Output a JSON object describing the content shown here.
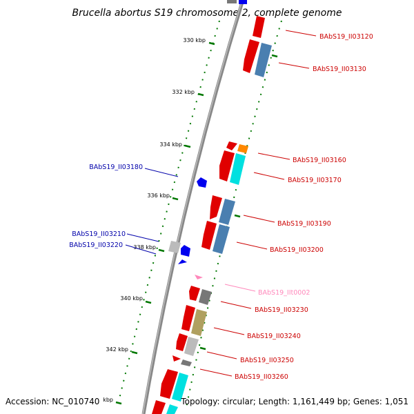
{
  "title": "Brucella abortus S19 chromosome 2, complete genome",
  "accession": "Accession: NC_010740",
  "topology": "Topology: circular; Length: 1,161,449 bp; Genes: 1,051",
  "kbp_unit": "kbp",
  "tick_labels": [
    "330 kbp",
    "332 kbp",
    "334 kbp",
    "336 kbp",
    "338 kbp",
    "340 kbp",
    "342 kbp"
  ],
  "colors": {
    "backbone": "#888888",
    "tick": "#007700",
    "red_gene": "#e00000",
    "blue_gene": "#4a7fb0",
    "cyan_gene": "#00e0e0",
    "orange_gene": "#ff8800",
    "grey_gene": "#777777",
    "lightgrey_gene": "#bbbbbb",
    "olive_gene": "#b0a060",
    "blue_rev_gene": "#0000ee",
    "pink_rna": "#ff88bb",
    "label_red": "#cc0000",
    "label_blue": "#0000aa",
    "label_pink": "#ff88bb"
  },
  "gene_labels": [
    {
      "text": "BAbS19_II03120",
      "color": "label_red"
    },
    {
      "text": "BAbS19_II03130",
      "color": "label_red"
    },
    {
      "text": "BAbS19_II03160",
      "color": "label_red"
    },
    {
      "text": "BAbS19_II03170",
      "color": "label_red"
    },
    {
      "text": "BAbS19_II03190",
      "color": "label_red"
    },
    {
      "text": "BAbS19_II03200",
      "color": "label_red"
    },
    {
      "text": "BAbS19_IIt0002",
      "color": "label_pink"
    },
    {
      "text": "BAbS19_II03230",
      "color": "label_red"
    },
    {
      "text": "BAbS19_II03240",
      "color": "label_red"
    },
    {
      "text": "BAbS19_II03250",
      "color": "label_red"
    },
    {
      "text": "BAbS19_II03260",
      "color": "label_red"
    },
    {
      "text": "BAbS19_II03180",
      "color": "label_blue"
    },
    {
      "text": "BAbS19_II03210",
      "color": "label_blue"
    },
    {
      "text": "BAbS19_II03220",
      "color": "label_blue"
    }
  ]
}
